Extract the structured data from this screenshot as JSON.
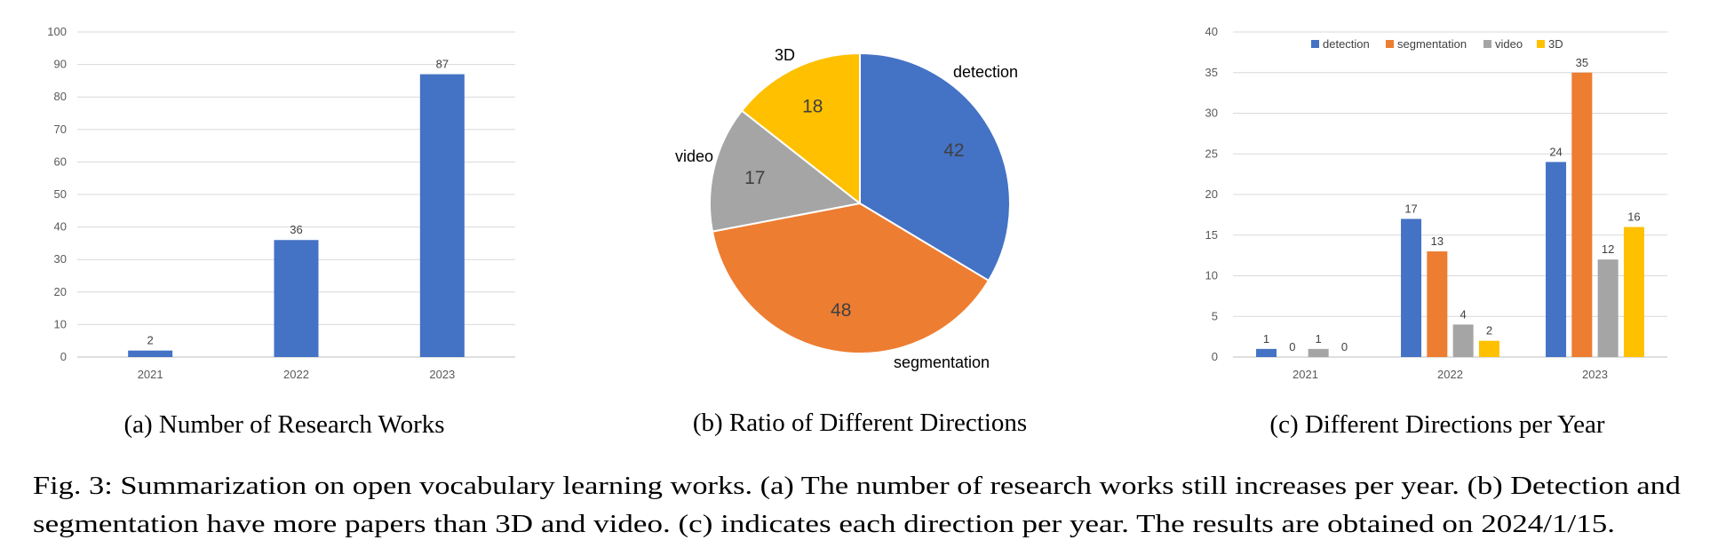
{
  "chart_data": [
    {
      "type": "bar",
      "categories": [
        "2021",
        "2022",
        "2023"
      ],
      "values": [
        2,
        36,
        87
      ],
      "value_labels": [
        "2",
        "36",
        "87"
      ],
      "ylim": [
        0,
        100
      ],
      "yticks": [
        "0",
        "10",
        "20",
        "30",
        "40",
        "50",
        "60",
        "70",
        "80",
        "90",
        "100"
      ],
      "grid": true,
      "color": "#4472C4",
      "caption": "(a) Number of Research Works"
    },
    {
      "type": "pie",
      "slices": [
        {
          "label": "detection",
          "value": 42,
          "value_label": "42",
          "color": "#4472C4"
        },
        {
          "label": "segmentation",
          "value": 48,
          "value_label": "48",
          "color": "#ED7D31"
        },
        {
          "label": "video",
          "value": 17,
          "value_label": "17",
          "color": "#A5A5A5"
        },
        {
          "label": "3D",
          "value": 18,
          "value_label": "18",
          "color": "#FFC000"
        }
      ],
      "caption": "(b) Ratio of Different Directions"
    },
    {
      "type": "bar",
      "categories": [
        "2021",
        "2022",
        "2023"
      ],
      "series": [
        {
          "name": "detection",
          "color": "#4472C4",
          "values": [
            1,
            17,
            24
          ],
          "value_labels": [
            "1",
            "17",
            "24"
          ]
        },
        {
          "name": "segmentation",
          "color": "#ED7D31",
          "values": [
            0,
            13,
            35
          ],
          "value_labels": [
            "0",
            "13",
            "35"
          ]
        },
        {
          "name": "video",
          "color": "#A5A5A5",
          "values": [
            1,
            4,
            12
          ],
          "value_labels": [
            "1",
            "4",
            "12"
          ]
        },
        {
          "name": "3D",
          "color": "#FFC000",
          "values": [
            0,
            2,
            16
          ],
          "value_labels": [
            "0",
            "2",
            "16"
          ]
        }
      ],
      "ylim": [
        0,
        40
      ],
      "yticks": [
        "0",
        "5",
        "10",
        "15",
        "20",
        "25",
        "30",
        "35",
        "40"
      ],
      "grid": true,
      "legend": "top",
      "caption": "(c) Different Directions per Year"
    }
  ],
  "figure_caption": {
    "line1": "Fig. 3: Summarization on open vocabulary learning works. (a) The number of research works still increases per year. (b) Detection and",
    "line2": "segmentation have more papers than 3D and video. (c) indicates each direction per year. The results are obtained on 2024/1/15."
  }
}
